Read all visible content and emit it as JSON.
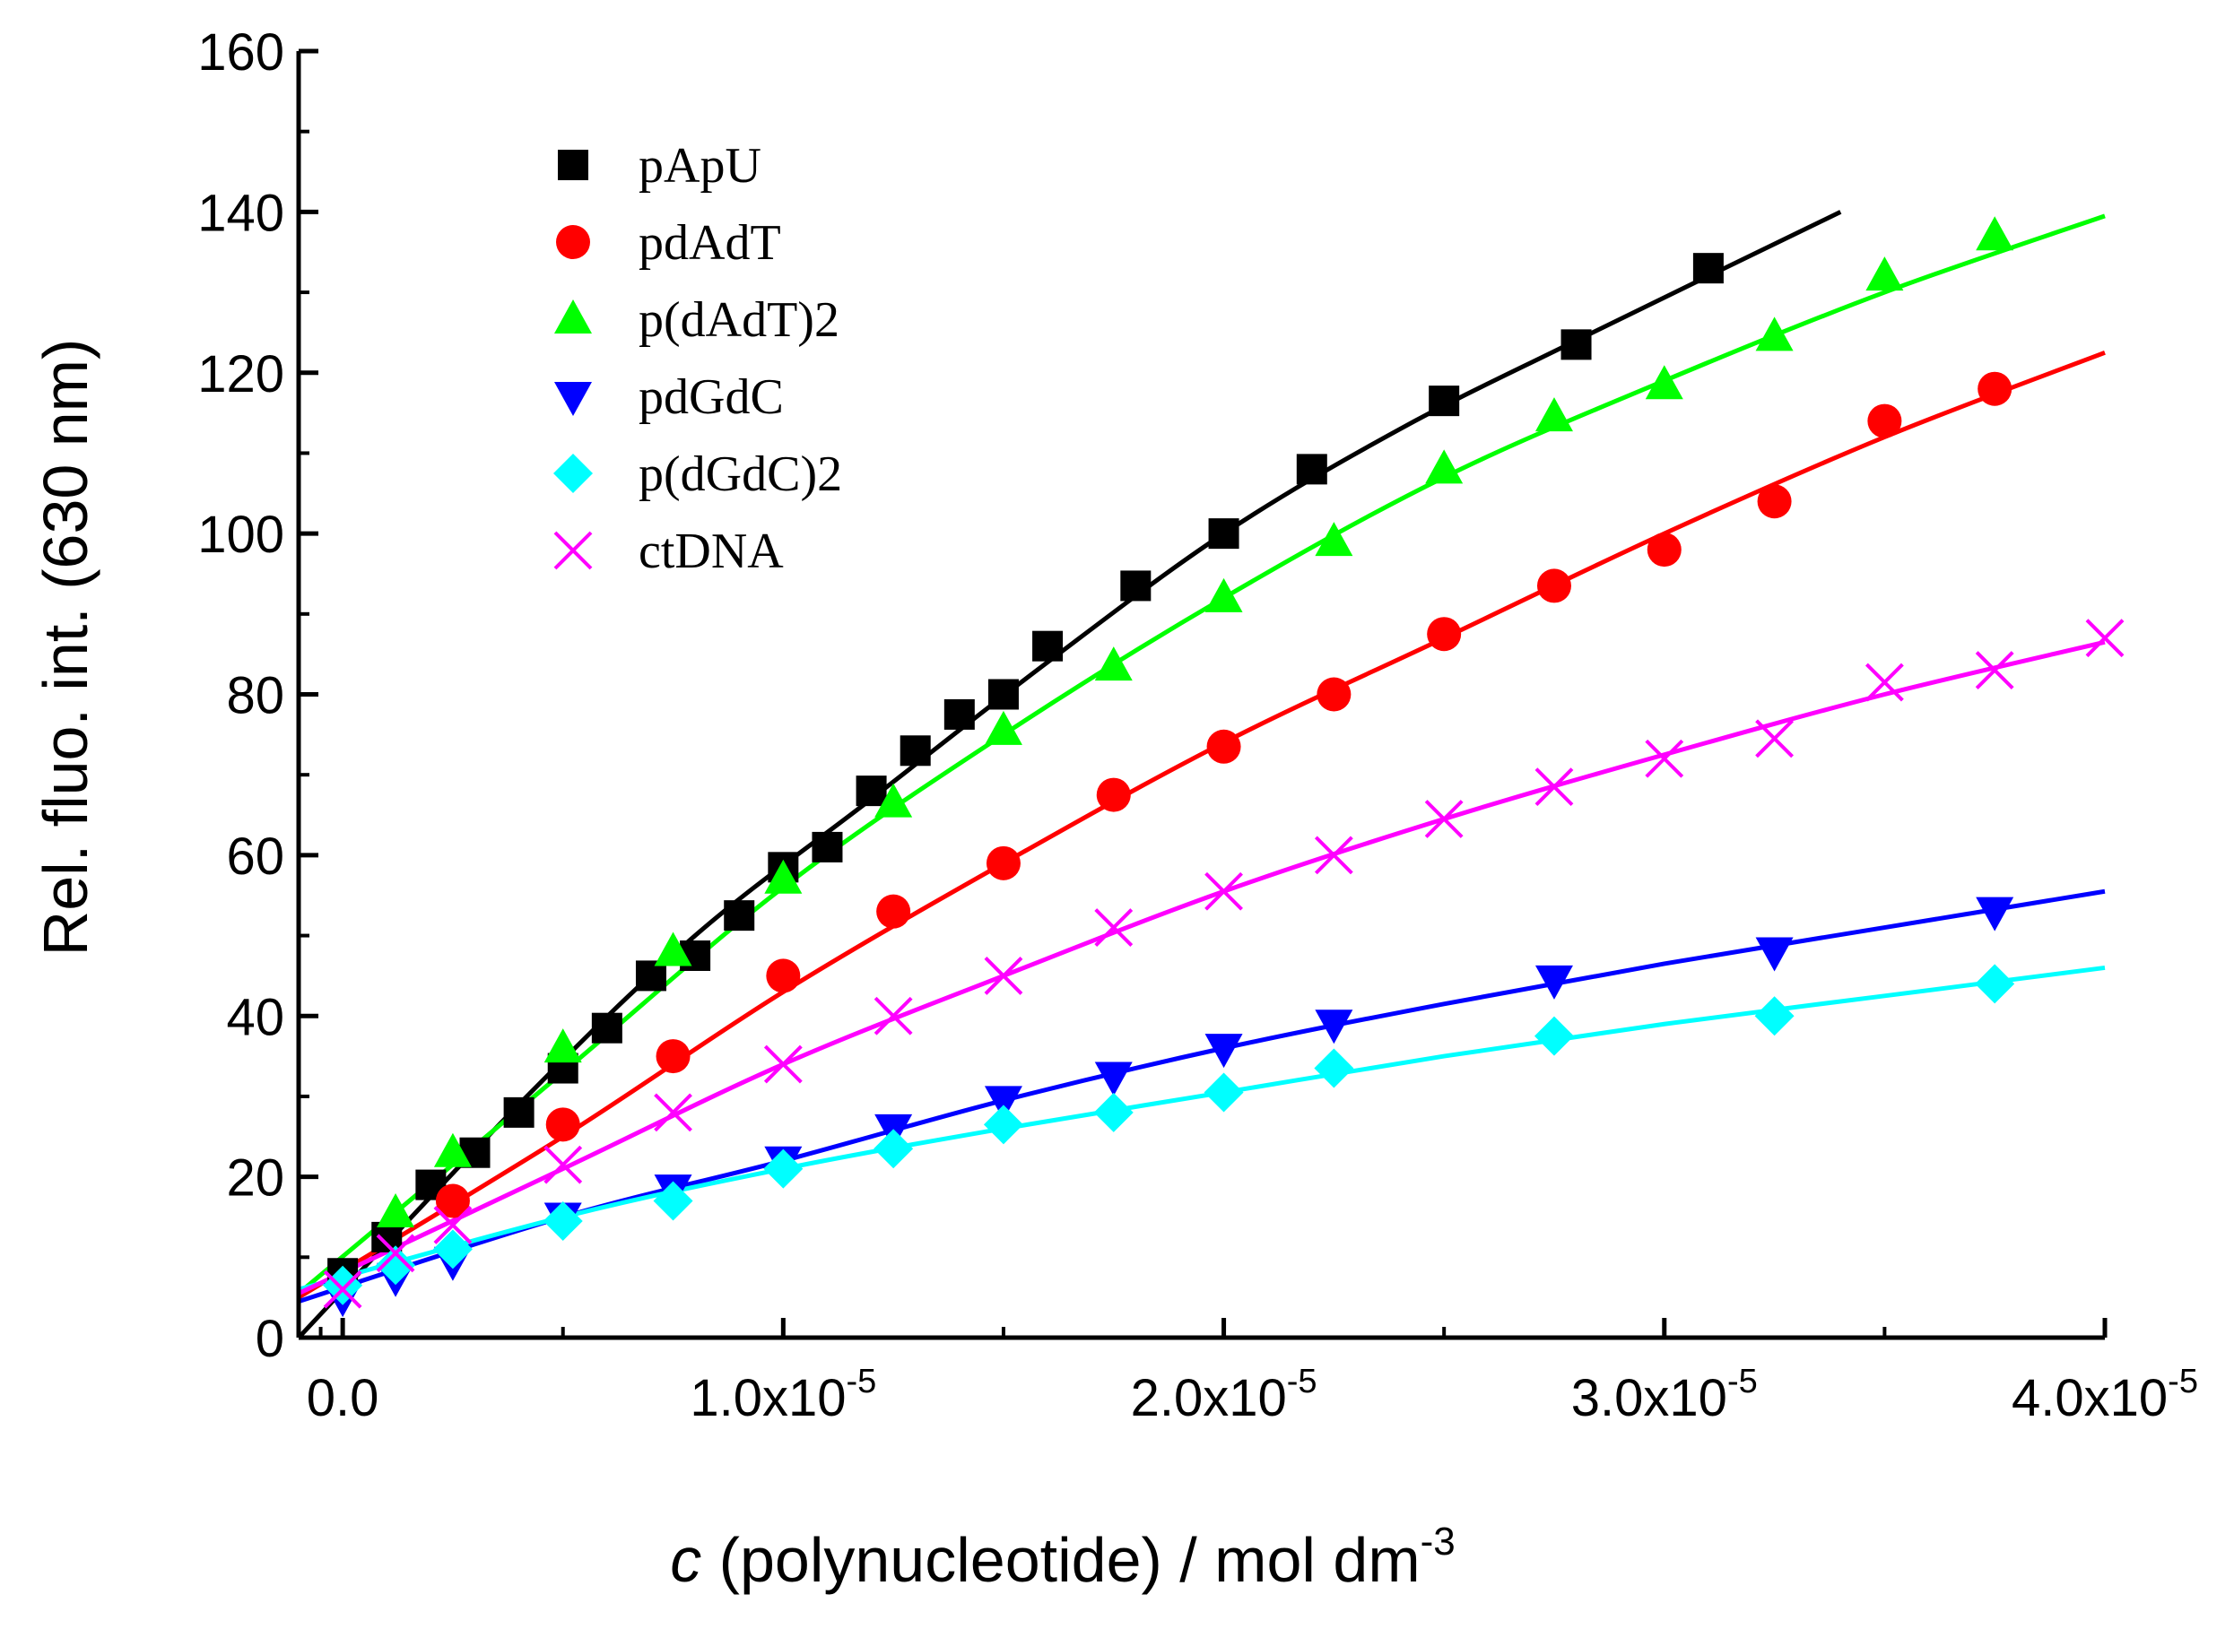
{
  "chart_data": {
    "type": "scatter",
    "xlabel": {
      "italic": "c",
      "main": " (polynucleotide) / mol dm",
      "sup": "-3"
    },
    "ylabel": "Rel. fluo. int. (630 nm)",
    "xlim": [
      -1e-06,
      4e-05
    ],
    "ylim": [
      0,
      160
    ],
    "xticks": [
      {
        "value": 0,
        "label": "0.0",
        "exp": ""
      },
      {
        "value": 1e-05,
        "label": "1.0x10",
        "exp": "-5"
      },
      {
        "value": 2e-05,
        "label": "2.0x10",
        "exp": "-5"
      },
      {
        "value": 3e-05,
        "label": "3.0x10",
        "exp": "-5"
      },
      {
        "value": 4e-05,
        "label": "4.0x10",
        "exp": "-5"
      }
    ],
    "yticks": [
      {
        "value": 0,
        "label": "0"
      },
      {
        "value": 20,
        "label": "20"
      },
      {
        "value": 40,
        "label": "40"
      },
      {
        "value": 60,
        "label": "60"
      },
      {
        "value": 80,
        "label": "80"
      },
      {
        "value": 100,
        "label": "100"
      },
      {
        "value": 120,
        "label": "120"
      },
      {
        "value": 140,
        "label": "140"
      },
      {
        "value": 160,
        "label": "160"
      }
    ],
    "legend_position": "top-left",
    "series": [
      {
        "name": "pApU",
        "color": "#000000",
        "marker": "square",
        "x": [
          0,
          1e-06,
          2e-06,
          3e-06,
          4e-06,
          5e-06,
          6e-06,
          7e-06,
          8e-06,
          9e-06,
          1e-05,
          1.1e-05,
          1.2e-05,
          1.3e-05,
          1.4e-05,
          1.5e-05,
          1.6e-05,
          1.8e-05,
          2e-05,
          2.2e-05,
          2.5e-05,
          2.8e-05,
          3.1e-05
        ],
        "y": [
          8,
          12.5,
          19,
          23,
          28,
          33.5,
          38.5,
          45,
          47.5,
          52.5,
          58.5,
          61,
          68,
          73,
          77.5,
          80,
          86,
          93.5,
          100,
          108,
          116.5,
          123.5,
          133
        ],
        "fit": {
          "x": [
            -1e-06,
            4e-06,
            8e-06,
            1.2e-05,
            1.6e-05,
            2e-05,
            2.4e-05,
            2.8e-05,
            3.4e-05
          ],
          "y": [
            0,
            29,
            50,
            67,
            84,
            100,
            113,
            124,
            140
          ]
        }
      },
      {
        "name": "pdAdT",
        "color": "#ff0000",
        "marker": "circle",
        "x": [
          2.5e-06,
          5e-06,
          7.5e-06,
          1e-05,
          1.25e-05,
          1.5e-05,
          1.75e-05,
          2e-05,
          2.25e-05,
          2.5e-05,
          2.75e-05,
          3e-05,
          3.25e-05,
          3.5e-05,
          3.75e-05
        ],
        "y": [
          17,
          26.5,
          35,
          45,
          53,
          59,
          67.5,
          73.5,
          80,
          87.5,
          93.5,
          98,
          104,
          114,
          118
        ],
        "fit": {
          "x": [
            -1e-06,
            5e-06,
            1e-05,
            1.5e-05,
            2e-05,
            2.5e-05,
            3e-05,
            3.5e-05,
            4e-05
          ],
          "y": [
            5,
            25,
            43,
            59,
            74,
            87,
            100,
            112,
            122.5
          ]
        }
      },
      {
        "name": "p(dAdT)2",
        "color": "#00ff00",
        "marker": "triangle-up",
        "x": [
          1.2e-06,
          2.5e-06,
          5e-06,
          7.5e-06,
          1e-05,
          1.25e-05,
          1.5e-05,
          1.75e-05,
          2e-05,
          2.25e-05,
          2.5e-05,
          2.75e-05,
          3e-05,
          3.25e-05,
          3.5e-05,
          3.75e-05
        ],
        "y": [
          15.5,
          23,
          36,
          48,
          57,
          66.5,
          75.5,
          83.5,
          92,
          99,
          108,
          114.5,
          118.5,
          124.5,
          132,
          137
        ],
        "fit": {
          "x": [
            -1e-06,
            5e-06,
            1e-05,
            1.5e-05,
            2e-05,
            2.5e-05,
            3e-05,
            3.5e-05,
            4e-05
          ],
          "y": [
            5.5,
            33,
            56,
            75,
            92,
            107,
            119,
            130,
            139.5
          ]
        }
      },
      {
        "name": "pdGdC",
        "color": "#0000ff",
        "marker": "triangle-down",
        "x": [
          0,
          1.2e-06,
          2.5e-06,
          5e-06,
          7.5e-06,
          1e-05,
          1.25e-05,
          1.5e-05,
          1.75e-05,
          2e-05,
          2.25e-05,
          2.75e-05,
          3.25e-05,
          3.75e-05
        ],
        "y": [
          5,
          7.5,
          9.5,
          15,
          18.5,
          22,
          26,
          29.5,
          32.5,
          36,
          39,
          44.5,
          48,
          53
        ],
        "fit": {
          "x": [
            -1e-06,
            5e-06,
            1e-05,
            1.5e-05,
            2e-05,
            2.5e-05,
            3e-05,
            3.5e-05,
            4e-05
          ],
          "y": [
            4.5,
            15,
            22,
            29.5,
            36,
            41.5,
            46.5,
            51,
            55.5
          ]
        }
      },
      {
        "name": "p(dGdC)2",
        "color": "#00ffff",
        "marker": "diamond",
        "x": [
          0,
          1.2e-06,
          2.5e-06,
          5e-06,
          7.5e-06,
          1e-05,
          1.25e-05,
          1.5e-05,
          1.75e-05,
          2e-05,
          2.25e-05,
          2.75e-05,
          3.25e-05,
          3.75e-05
        ],
        "y": [
          6.5,
          9,
          11,
          14.5,
          17,
          21,
          23.5,
          26.5,
          28,
          30.5,
          33.5,
          37.5,
          40,
          44
        ],
        "fit": {
          "x": [
            -1e-06,
            5e-06,
            1e-05,
            1.5e-05,
            2e-05,
            2.5e-05,
            3e-05,
            3.5e-05,
            4e-05
          ],
          "y": [
            6,
            15,
            21,
            26,
            30.5,
            35,
            39,
            42.5,
            46
          ]
        }
      },
      {
        "name": "ctDNA",
        "color": "#ff00ff",
        "marker": "cross",
        "x": [
          0,
          1.2e-06,
          2.5e-06,
          5e-06,
          7.5e-06,
          1e-05,
          1.25e-05,
          1.5e-05,
          1.75e-05,
          2e-05,
          2.25e-05,
          2.5e-05,
          2.75e-05,
          3e-05,
          3.25e-05,
          3.5e-05,
          3.75e-05,
          4e-05
        ],
        "y": [
          6,
          10.5,
          14,
          21.5,
          28,
          34,
          40,
          45,
          51,
          55.5,
          60,
          64.5,
          68.5,
          72,
          74.5,
          81.5,
          83,
          87
        ],
        "fit": {
          "x": [
            -1e-06,
            5e-06,
            1e-05,
            1.5e-05,
            2e-05,
            2.5e-05,
            3e-05,
            3.5e-05,
            4e-05
          ],
          "y": [
            5.5,
            21,
            34,
            45,
            55.5,
            64.5,
            72.5,
            80,
            86.5
          ]
        }
      }
    ]
  }
}
